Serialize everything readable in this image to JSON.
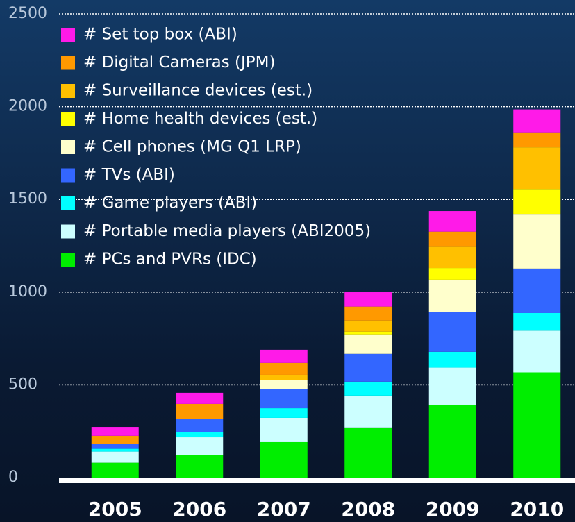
{
  "chart_data": {
    "type": "stacked_bar",
    "categories": [
      "2005",
      "2006",
      "2007",
      "2008",
      "2009",
      "2010"
    ],
    "series": [
      {
        "name": "# PCs and PVRs (IDC)",
        "color": "#00ee00",
        "values": [
          80,
          120,
          191,
          270,
          393,
          567
        ]
      },
      {
        "name": "# Portable media players (ABI2005)",
        "color": "#ccffff",
        "values": [
          60,
          97,
          131,
          172,
          200,
          225
        ]
      },
      {
        "name": "# Game players (ABI)",
        "color": "#00ffff",
        "values": [
          15,
          30,
          52,
          75,
          85,
          95
        ]
      },
      {
        "name": "# TVs (ABI)",
        "color": "#3366ff",
        "values": [
          25,
          71,
          105,
          150,
          215,
          240
        ]
      },
      {
        "name": "# Cell phones (MG Q1 LRP)",
        "color": "#ffffcc",
        "values": [
          0,
          0,
          45,
          105,
          174,
          291
        ]
      },
      {
        "name": "# Home health devices (est.)",
        "color": "#ffff00",
        "values": [
          0,
          0,
          0,
          15,
          63,
          138
        ]
      },
      {
        "name": "# Surveillance devices (est.)",
        "color": "#ffc000",
        "values": [
          0,
          0,
          30,
          60,
          114,
          225
        ]
      },
      {
        "name": "# Digital Cameras (JPM)",
        "color": "#ff9900",
        "values": [
          45,
          79,
          64,
          75,
          82,
          80
        ]
      },
      {
        "name": "# Set top box (ABI)",
        "color": "#ff1ae8",
        "values": [
          48,
          60,
          71,
          79,
          111,
          124
        ]
      }
    ],
    "ylim": [
      0,
      2500
    ],
    "yticks": [
      0,
      500,
      1000,
      1500,
      2000,
      2500
    ],
    "grid": true,
    "legend": "upper left"
  }
}
